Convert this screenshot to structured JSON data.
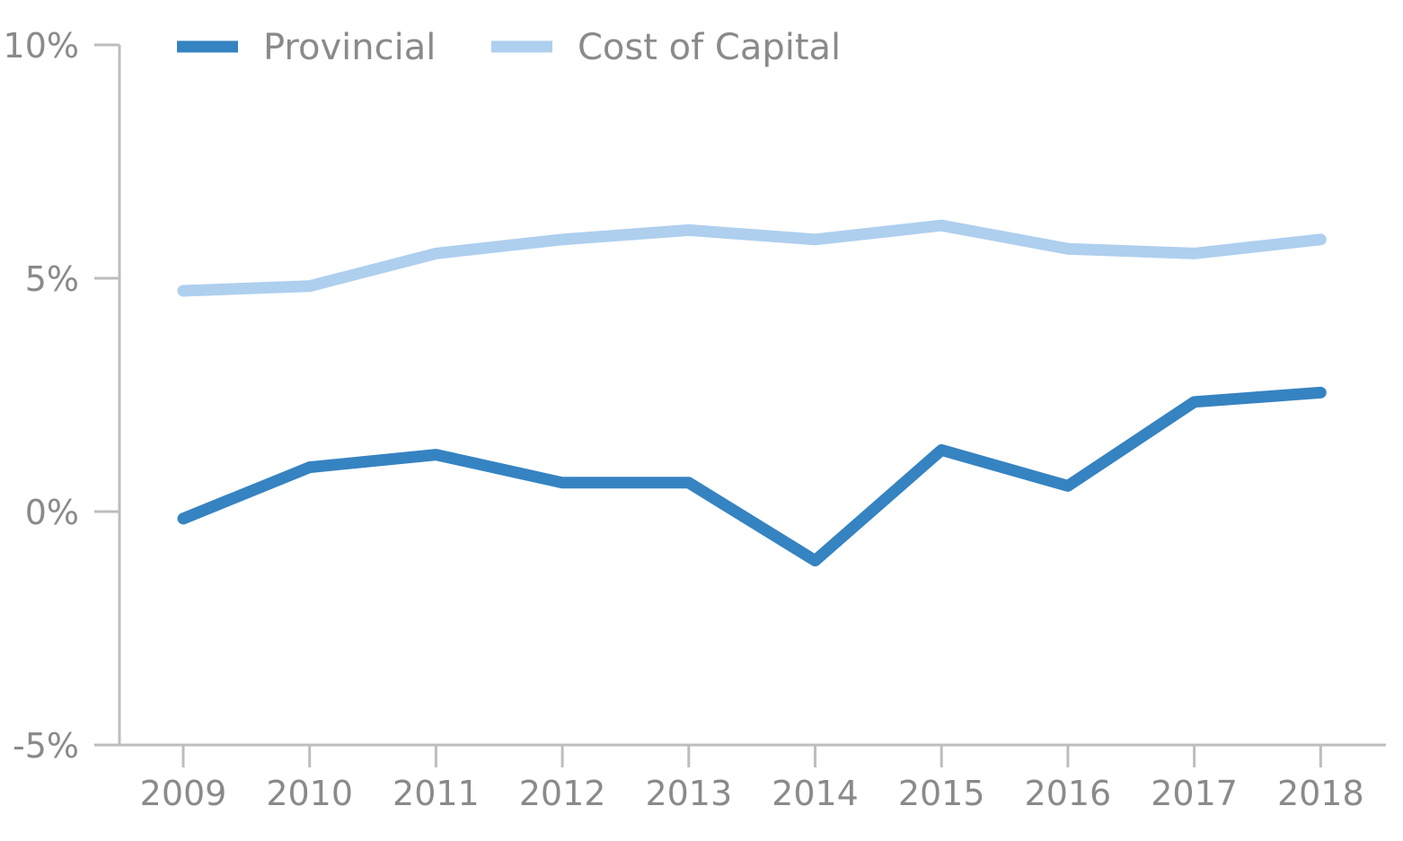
{
  "chart_data": {
    "type": "line",
    "x": [
      "2009",
      "2010",
      "2011",
      "2012",
      "2013",
      "2014",
      "2015",
      "2016",
      "2017",
      "2018"
    ],
    "series": [
      {
        "name": "Provincial",
        "color": "#3583c1",
        "values": [
          -0.15,
          0.95,
          1.22,
          0.62,
          0.62,
          -1.05,
          1.32,
          0.55,
          2.35,
          2.55
        ]
      },
      {
        "name": "Cost of Capital",
        "color": "#aecfee",
        "values": [
          4.73,
          4.83,
          5.53,
          5.83,
          6.03,
          5.83,
          6.13,
          5.63,
          5.53,
          5.83
        ]
      }
    ],
    "y_ticks": [
      "10%",
      "5%",
      "0%",
      "-5%"
    ],
    "ylim": [
      -5,
      10
    ],
    "grid": false,
    "legend_position": "top-left"
  }
}
